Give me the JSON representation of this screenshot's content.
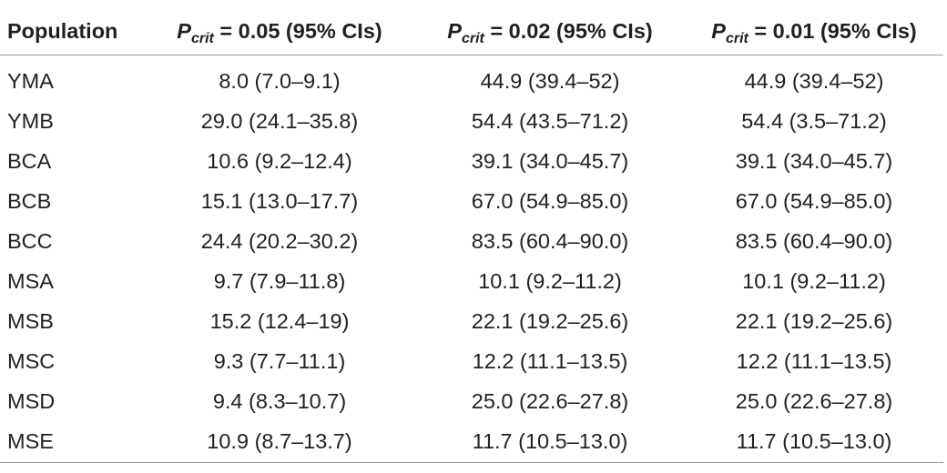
{
  "table": {
    "header": {
      "population": "Population",
      "cols": [
        {
          "p": "P",
          "sub": "crit",
          "rest": " = 0.05 (95% CIs)"
        },
        {
          "p": "P",
          "sub": "crit",
          "rest": " = 0.02 (95% CIs)"
        },
        {
          "p": "P",
          "sub": "crit",
          "rest": " = 0.01 (95% CIs)"
        }
      ]
    },
    "rows": [
      {
        "population": "YMA",
        "p005": "8.0 (7.0–9.1)",
        "p002": "44.9 (39.4–52)",
        "p001": "44.9 (39.4–52)"
      },
      {
        "population": "YMB",
        "p005": "29.0 (24.1–35.8)",
        "p002": "54.4 (43.5–71.2)",
        "p001": "54.4 (3.5–71.2)"
      },
      {
        "population": "BCA",
        "p005": "10.6 (9.2–12.4)",
        "p002": "39.1 (34.0–45.7)",
        "p001": "39.1 (34.0–45.7)"
      },
      {
        "population": "BCB",
        "p005": "15.1 (13.0–17.7)",
        "p002": "67.0 (54.9–85.0)",
        "p001": "67.0 (54.9–85.0)"
      },
      {
        "population": "BCC",
        "p005": "24.4 (20.2–30.2)",
        "p002": "83.5 (60.4–90.0)",
        "p001": "83.5 (60.4–90.0)"
      },
      {
        "population": "MSA",
        "p005": "9.7 (7.9–11.8)",
        "p002": "10.1 (9.2–11.2)",
        "p001": "10.1 (9.2–11.2)"
      },
      {
        "population": "MSB",
        "p005": "15.2 (12.4–19)",
        "p002": "22.1 (19.2–25.6)",
        "p001": "22.1 (19.2–25.6)"
      },
      {
        "population": "MSC",
        "p005": "9.3 (7.7–11.1)",
        "p002": "12.2 (11.1–13.5)",
        "p001": "12.2 (11.1–13.5)"
      },
      {
        "population": "MSD",
        "p005": "9.4 (8.3–10.7)",
        "p002": "25.0 (22.6–27.8)",
        "p001": "25.0 (22.6–27.8)"
      },
      {
        "population": "MSE",
        "p005": "10.9 (8.7–13.7)",
        "p002": "11.7 (10.5–13.0)",
        "p001": "11.7 (10.5–13.0)"
      }
    ]
  }
}
